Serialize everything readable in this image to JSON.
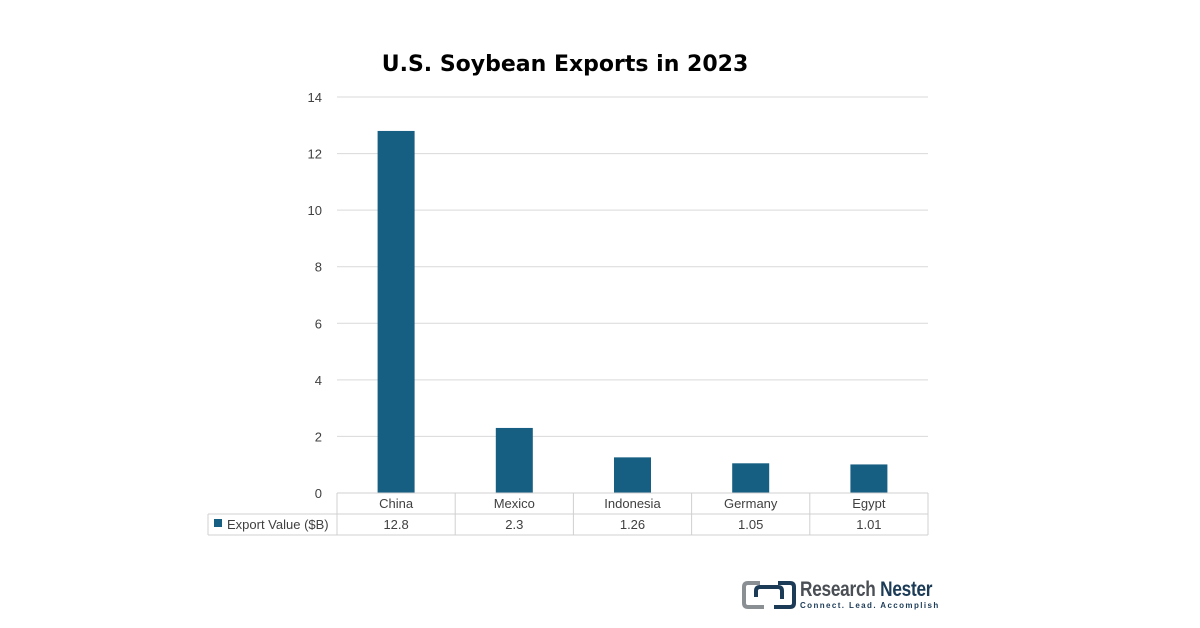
{
  "chart_data": {
    "type": "bar",
    "title": "U.S. Soybean Exports in 2023",
    "categories": [
      "China",
      "Mexico",
      "Indonesia",
      "Germany",
      "Egypt"
    ],
    "series": [
      {
        "name": "Export Value ($B)",
        "values": [
          12.8,
          2.3,
          1.26,
          1.05,
          1.01
        ],
        "display_values": [
          "12.8",
          "2.3",
          "1.26",
          "1.05",
          "1.01"
        ],
        "color": "#175f82"
      }
    ],
    "ylim": [
      0,
      14
    ],
    "yticks": [
      "0",
      "2",
      "4",
      "6",
      "8",
      "10",
      "12",
      "14"
    ],
    "grid": true,
    "legend": "data-table-below"
  },
  "branding": {
    "name_part1": "Research",
    "name_part2": "Nester",
    "tagline": "Connect. Lead. Accomplish",
    "logo_color": "#1c3b57",
    "logo_grey": "#8a8f94"
  }
}
